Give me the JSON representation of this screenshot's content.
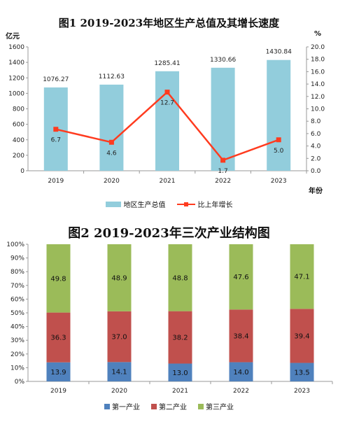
{
  "chart_data": [
    {
      "type": "bar+line",
      "title": "图1  2019-2023年地区生产总值及其增长速度",
      "categories": [
        "2019",
        "2020",
        "2021",
        "2022",
        "2023"
      ],
      "left_axis_unit": "亿元",
      "right_axis_unit": "%",
      "x_axis_unit": "年份",
      "ylim_left": [
        0,
        1600
      ],
      "ylim_right": [
        0,
        20
      ],
      "left_ticks": [
        "0",
        "200",
        "400",
        "600",
        "800",
        "1000",
        "1200",
        "1400",
        "1600"
      ],
      "right_ticks": [
        "0.0",
        "2.0",
        "4.0",
        "6.0",
        "8.0",
        "10.0",
        "12.0",
        "14.0",
        "16.0",
        "18.0",
        "20.0"
      ],
      "series": [
        {
          "name": "地区生产总值",
          "kind": "bar",
          "color": "#92cddc",
          "values": [
            1076.27,
            1112.63,
            1285.41,
            1330.66,
            1430.84
          ],
          "labels": [
            "1076.27",
            "1112.63",
            "1285.41",
            "1330.66",
            "1430.84"
          ]
        },
        {
          "name": "比上年增长",
          "kind": "line",
          "color": "#ff3b1f",
          "values": [
            6.7,
            4.6,
            12.7,
            1.7,
            5.0
          ],
          "labels": [
            "6.7",
            "4.6",
            "12.7",
            "1.7",
            "5.0"
          ]
        }
      ],
      "legend": "bottom"
    },
    {
      "type": "stacked-bar-100",
      "title": "图2  2019-2023年三次产业结构图",
      "categories": [
        "2019",
        "2020",
        "2021",
        "2022",
        "2023"
      ],
      "ylim": [
        0,
        100
      ],
      "y_ticks": [
        "0%",
        "10%",
        "20%",
        "30%",
        "40%",
        "50%",
        "60%",
        "70%",
        "80%",
        "90%",
        "100%"
      ],
      "series": [
        {
          "name": "第一产业",
          "color": "#4f81bd",
          "values": [
            13.9,
            14.1,
            13.0,
            14.0,
            13.5
          ],
          "labels": [
            "13.9",
            "14.1",
            "13.0",
            "14.0",
            "13.5"
          ]
        },
        {
          "name": "第二产业",
          "color": "#c0504d",
          "values": [
            36.3,
            37.0,
            38.2,
            38.4,
            39.4
          ],
          "labels": [
            "36.3",
            "37.0",
            "38.2",
            "38.4",
            "39.4"
          ]
        },
        {
          "name": "第三产业",
          "color": "#9bbb59",
          "values": [
            49.8,
            48.9,
            48.8,
            47.6,
            47.1
          ],
          "labels": [
            "49.8",
            "48.9",
            "48.8",
            "47.6",
            "47.1"
          ]
        }
      ],
      "legend": "bottom"
    }
  ]
}
